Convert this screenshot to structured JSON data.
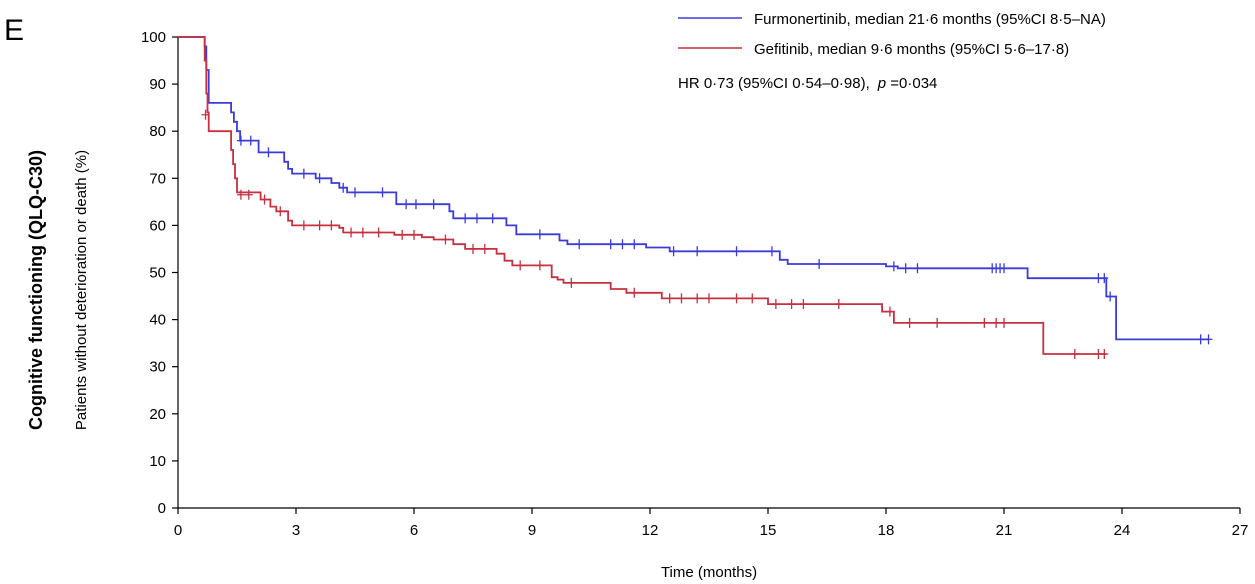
{
  "chart_data": {
    "type": "line",
    "panel_label": "E",
    "section_title": "Cognitive functioning (QLQ-C30)",
    "ylabel": "Patients without deterioration or death (%)",
    "xlabel": "Time (months)",
    "xlim": [
      0,
      27
    ],
    "ylim": [
      0,
      100
    ],
    "x_ticks": [
      0,
      3,
      6,
      9,
      12,
      15,
      18,
      21,
      24,
      27
    ],
    "y_ticks": [
      0,
      10,
      20,
      30,
      40,
      50,
      60,
      70,
      80,
      90,
      100
    ],
    "grid": false,
    "legend_position": "top-right",
    "annotation": {
      "prefix": "HR 0·73 (95%CI 0·54–0·98),",
      "p_symbol": "p",
      "p_value": " =0·034"
    },
    "series": [
      {
        "name": "Furmonertinib, median 21·6 months (95%CI 8·5–NA)",
        "color": "#3b3bdc",
        "steps": [
          [
            0,
            100
          ],
          [
            0.65,
            100
          ],
          [
            0.68,
            98
          ],
          [
            0.72,
            93
          ],
          [
            0.78,
            86
          ],
          [
            1.2,
            86
          ],
          [
            1.35,
            84
          ],
          [
            1.42,
            82
          ],
          [
            1.5,
            80
          ],
          [
            1.58,
            78
          ],
          [
            2.05,
            75.5
          ],
          [
            2.7,
            73.5
          ],
          [
            2.8,
            72
          ],
          [
            2.9,
            71
          ],
          [
            3.5,
            70
          ],
          [
            3.9,
            69
          ],
          [
            4.1,
            68
          ],
          [
            4.3,
            67
          ],
          [
            5.55,
            64.5
          ],
          [
            6.9,
            63
          ],
          [
            7.0,
            61.5
          ],
          [
            8.35,
            60
          ],
          [
            8.6,
            58.1
          ],
          [
            9.7,
            56.8
          ],
          [
            9.9,
            56
          ],
          [
            11.9,
            55.3
          ],
          [
            12.5,
            54.5
          ],
          [
            15.3,
            52.7
          ],
          [
            15.5,
            51.8
          ],
          [
            18.0,
            51.3
          ],
          [
            18.3,
            50.9
          ],
          [
            19.2,
            50.9
          ],
          [
            21.6,
            48.8
          ],
          [
            23.6,
            44.9
          ],
          [
            23.85,
            35.8
          ],
          [
            26.2,
            35.8
          ]
        ],
        "censored": [
          [
            1.6,
            78
          ],
          [
            1.85,
            78
          ],
          [
            2.3,
            75.5
          ],
          [
            3.2,
            71
          ],
          [
            3.6,
            70
          ],
          [
            4.2,
            68
          ],
          [
            4.5,
            67
          ],
          [
            5.2,
            67
          ],
          [
            5.8,
            64.5
          ],
          [
            6.05,
            64.5
          ],
          [
            6.5,
            64.5
          ],
          [
            7.3,
            61.5
          ],
          [
            7.6,
            61.5
          ],
          [
            8.0,
            61.5
          ],
          [
            9.2,
            58.1
          ],
          [
            10.2,
            56
          ],
          [
            11.0,
            56
          ],
          [
            11.3,
            56
          ],
          [
            11.6,
            56
          ],
          [
            12.6,
            54.5
          ],
          [
            13.2,
            54.5
          ],
          [
            14.2,
            54.5
          ],
          [
            15.1,
            54.5
          ],
          [
            16.3,
            51.8
          ],
          [
            18.2,
            51.3
          ],
          [
            18.5,
            50.9
          ],
          [
            18.8,
            50.9
          ],
          [
            20.7,
            50.9
          ],
          [
            20.8,
            50.9
          ],
          [
            20.9,
            50.9
          ],
          [
            21.0,
            50.9
          ],
          [
            23.4,
            48.8
          ],
          [
            23.55,
            48.8
          ],
          [
            23.7,
            44.9
          ],
          [
            26.0,
            35.8
          ],
          [
            26.2,
            35.8
          ]
        ]
      },
      {
        "name": "Gefitinib, median 9·6 months (95%CI 5·6–17·8)",
        "color": "#c6303f",
        "steps": [
          [
            0,
            100
          ],
          [
            0.65,
            100
          ],
          [
            0.68,
            95
          ],
          [
            0.72,
            88
          ],
          [
            0.75,
            84
          ],
          [
            0.78,
            80
          ],
          [
            1.3,
            80
          ],
          [
            1.35,
            76
          ],
          [
            1.4,
            73
          ],
          [
            1.45,
            70
          ],
          [
            1.5,
            67
          ],
          [
            2.1,
            65.5
          ],
          [
            2.35,
            64
          ],
          [
            2.5,
            63
          ],
          [
            2.8,
            61
          ],
          [
            2.9,
            60
          ],
          [
            4.1,
            59.5
          ],
          [
            4.2,
            58.5
          ],
          [
            5.5,
            58
          ],
          [
            6.2,
            57.5
          ],
          [
            6.5,
            57
          ],
          [
            7.0,
            56
          ],
          [
            7.3,
            55
          ],
          [
            8.1,
            54
          ],
          [
            8.3,
            52.5
          ],
          [
            8.5,
            51.5
          ],
          [
            9.5,
            49
          ],
          [
            9.65,
            48.5
          ],
          [
            9.8,
            47.8
          ],
          [
            11.0,
            46.5
          ],
          [
            11.4,
            45.7
          ],
          [
            12.3,
            44.5
          ],
          [
            15.0,
            43.3
          ],
          [
            17.5,
            43.3
          ],
          [
            17.9,
            41.7
          ],
          [
            18.2,
            39.3
          ],
          [
            22.0,
            32.7
          ],
          [
            23.6,
            32.7
          ]
        ],
        "censored": [
          [
            0.7,
            83.5
          ],
          [
            1.6,
            66.5
          ],
          [
            1.8,
            66.5
          ],
          [
            2.2,
            65.5
          ],
          [
            2.6,
            63
          ],
          [
            3.2,
            60
          ],
          [
            3.6,
            60
          ],
          [
            3.9,
            60
          ],
          [
            4.4,
            58.5
          ],
          [
            4.7,
            58.5
          ],
          [
            5.1,
            58.5
          ],
          [
            5.7,
            58
          ],
          [
            6.0,
            58
          ],
          [
            6.8,
            57
          ],
          [
            7.5,
            55
          ],
          [
            7.8,
            55
          ],
          [
            8.7,
            51.5
          ],
          [
            9.2,
            51.5
          ],
          [
            10.0,
            47.8
          ],
          [
            11.6,
            45.7
          ],
          [
            12.5,
            44.5
          ],
          [
            12.8,
            44.5
          ],
          [
            13.2,
            44.5
          ],
          [
            13.5,
            44.5
          ],
          [
            14.2,
            44.5
          ],
          [
            14.6,
            44.5
          ],
          [
            15.2,
            43.3
          ],
          [
            15.6,
            43.3
          ],
          [
            15.9,
            43.3
          ],
          [
            16.8,
            43.3
          ],
          [
            18.1,
            41.7
          ],
          [
            18.6,
            39.3
          ],
          [
            19.3,
            39.3
          ],
          [
            20.5,
            39.3
          ],
          [
            20.8,
            39.3
          ],
          [
            21.0,
            39.3
          ],
          [
            22.8,
            32.7
          ],
          [
            23.4,
            32.7
          ],
          [
            23.55,
            32.7
          ]
        ]
      }
    ]
  }
}
